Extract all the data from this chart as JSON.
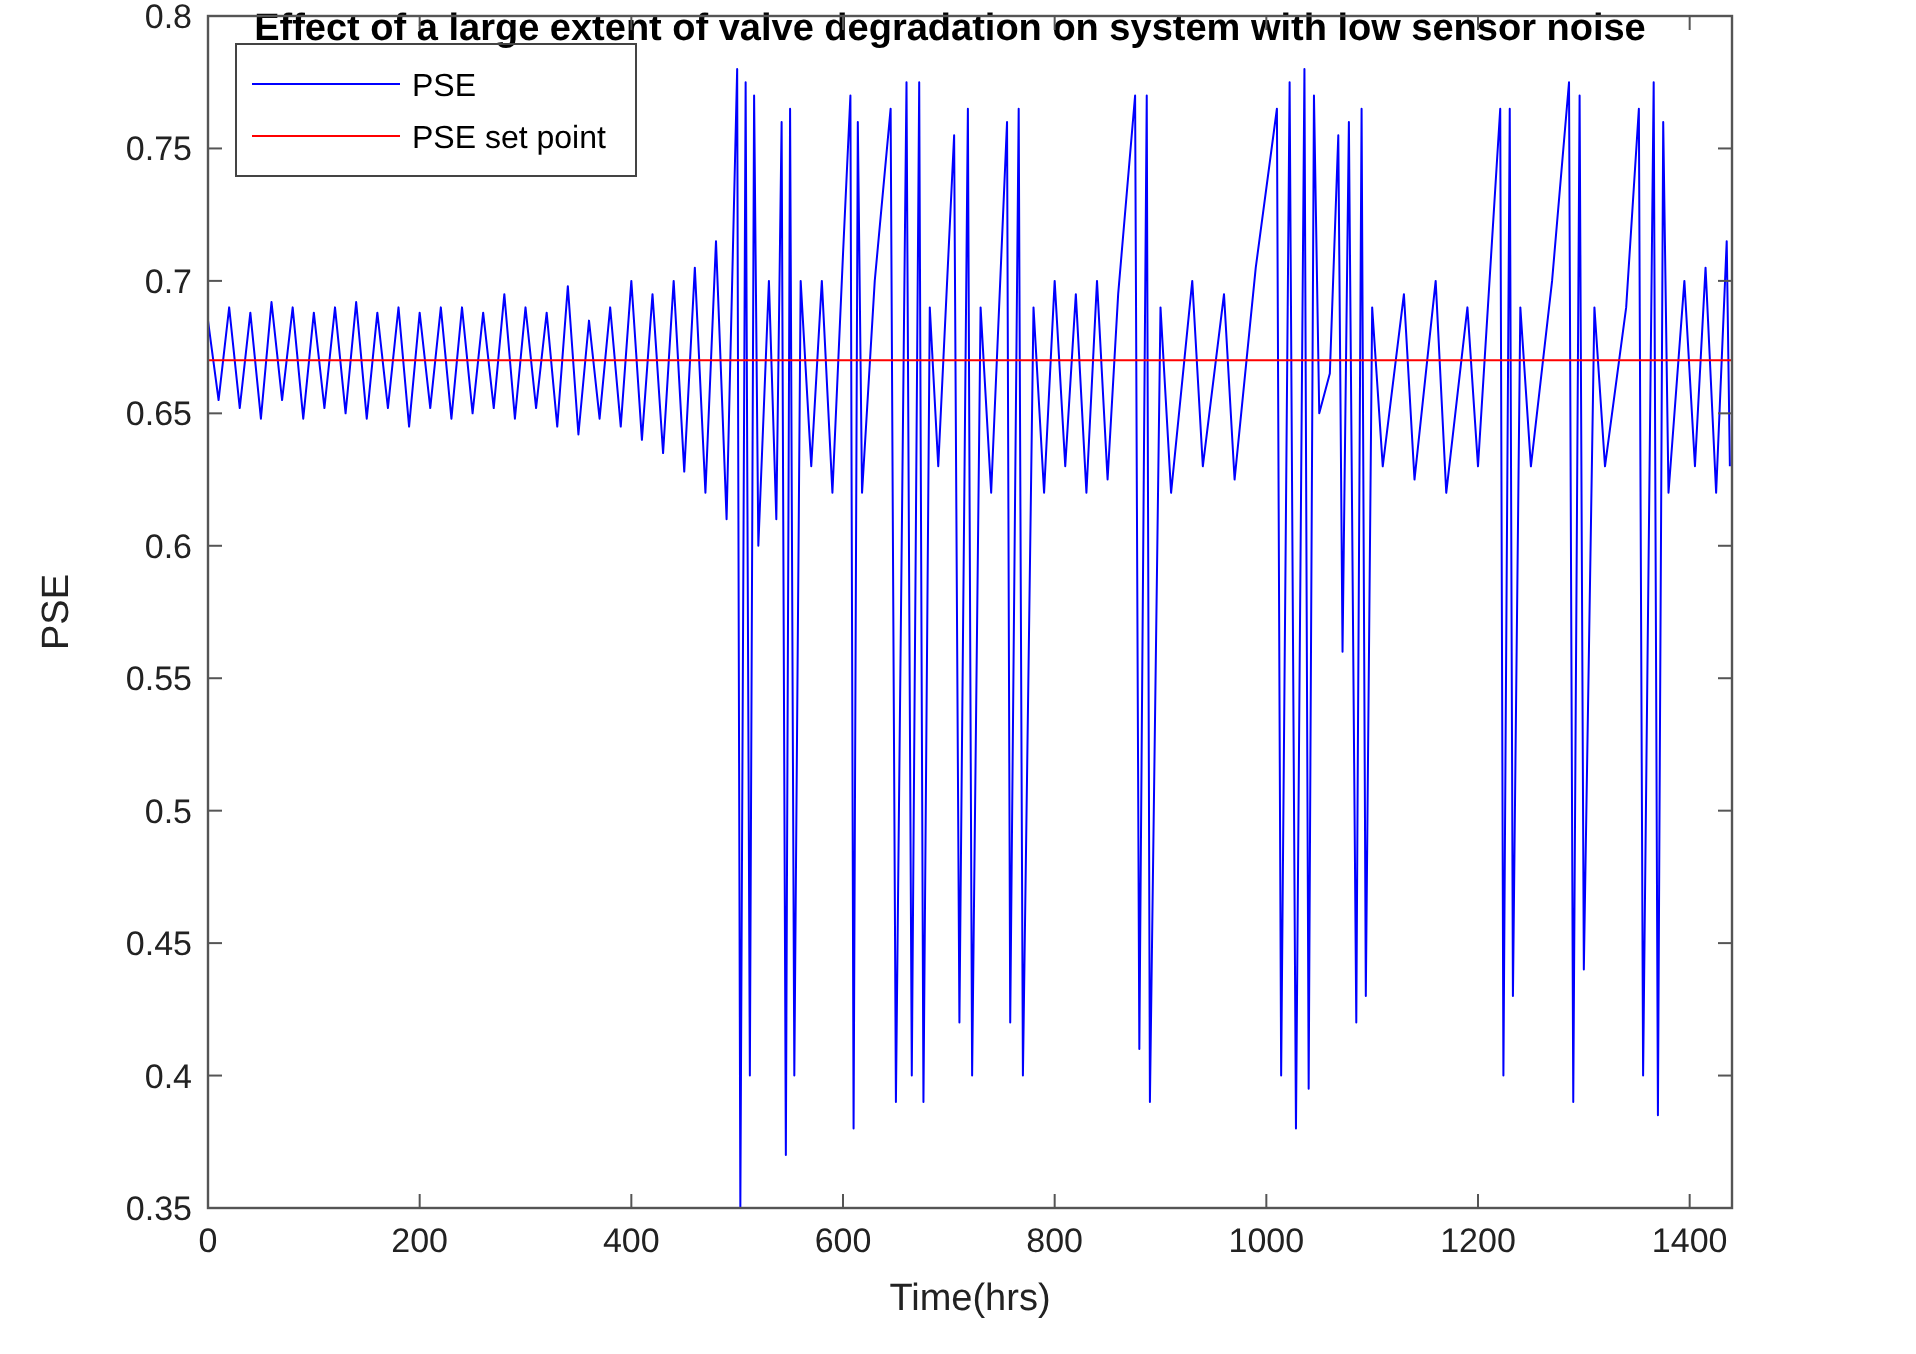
{
  "chart_data": {
    "type": "line",
    "title": "Effect of a large extent of valve degradation on system with low sensor noise",
    "xlabel": "Time(hrs)",
    "ylabel": "PSE",
    "xlim": [
      0,
      1440
    ],
    "xticks": [
      0,
      200,
      400,
      600,
      800,
      1000,
      1200,
      1400
    ],
    "ylim": [
      0.35,
      0.8
    ],
    "yticks": [
      0.35,
      0.4,
      0.45,
      0.5,
      0.55,
      0.6,
      0.65,
      0.7,
      0.75,
      0.8
    ],
    "grid": false,
    "legend": "top left",
    "line_style": "solid",
    "series": [
      {
        "name": "PSE",
        "color": "#0000ff",
        "x": [
          0,
          10,
          20,
          30,
          40,
          50,
          60,
          70,
          80,
          90,
          100,
          110,
          120,
          130,
          140,
          150,
          160,
          170,
          180,
          190,
          200,
          210,
          220,
          230,
          240,
          250,
          260,
          270,
          280,
          290,
          300,
          310,
          320,
          330,
          340,
          350,
          360,
          370,
          380,
          390,
          400,
          410,
          420,
          430,
          440,
          450,
          460,
          470,
          480,
          490,
          500,
          503,
          508,
          512,
          516,
          520,
          530,
          537,
          542,
          546,
          550,
          554,
          560,
          570,
          580,
          590,
          600,
          607,
          610,
          614,
          618,
          630,
          645,
          650,
          660,
          665,
          672,
          676,
          682,
          690,
          705,
          710,
          718,
          722,
          730,
          740,
          755,
          758,
          766,
          770,
          780,
          790,
          800,
          810,
          820,
          830,
          840,
          850,
          860,
          876,
          880,
          887,
          890,
          900,
          910,
          930,
          940,
          960,
          970,
          990,
          1010,
          1014,
          1022,
          1028,
          1036,
          1040,
          1045,
          1050,
          1060,
          1068,
          1072,
          1078,
          1085,
          1090,
          1094,
          1100,
          1110,
          1130,
          1140,
          1160,
          1170,
          1190,
          1200,
          1221,
          1224,
          1230,
          1233,
          1240,
          1250,
          1270,
          1286,
          1290,
          1296,
          1300,
          1310,
          1320,
          1340,
          1352,
          1356,
          1366,
          1370,
          1375,
          1380,
          1395,
          1405,
          1415,
          1425,
          1435,
          1438
        ],
        "values": [
          0.685,
          0.655,
          0.69,
          0.652,
          0.688,
          0.648,
          0.692,
          0.655,
          0.69,
          0.648,
          0.688,
          0.652,
          0.69,
          0.65,
          0.692,
          0.648,
          0.688,
          0.652,
          0.69,
          0.645,
          0.688,
          0.652,
          0.69,
          0.648,
          0.69,
          0.65,
          0.688,
          0.652,
          0.695,
          0.648,
          0.69,
          0.652,
          0.688,
          0.645,
          0.698,
          0.642,
          0.685,
          0.648,
          0.69,
          0.645,
          0.7,
          0.64,
          0.695,
          0.635,
          0.7,
          0.628,
          0.705,
          0.62,
          0.715,
          0.61,
          0.78,
          0.35,
          0.775,
          0.4,
          0.77,
          0.6,
          0.7,
          0.61,
          0.76,
          0.37,
          0.765,
          0.4,
          0.7,
          0.63,
          0.7,
          0.62,
          0.71,
          0.77,
          0.38,
          0.76,
          0.62,
          0.7,
          0.765,
          0.39,
          0.775,
          0.4,
          0.775,
          0.39,
          0.69,
          0.63,
          0.755,
          0.42,
          0.765,
          0.4,
          0.69,
          0.62,
          0.76,
          0.42,
          0.765,
          0.4,
          0.69,
          0.62,
          0.7,
          0.63,
          0.695,
          0.62,
          0.7,
          0.625,
          0.695,
          0.77,
          0.41,
          0.77,
          0.39,
          0.69,
          0.62,
          0.7,
          0.63,
          0.695,
          0.625,
          0.705,
          0.765,
          0.4,
          0.775,
          0.38,
          0.78,
          0.395,
          0.77,
          0.65,
          0.665,
          0.755,
          0.56,
          0.76,
          0.42,
          0.765,
          0.43,
          0.69,
          0.63,
          0.695,
          0.625,
          0.7,
          0.62,
          0.69,
          0.63,
          0.765,
          0.4,
          0.765,
          0.43,
          0.69,
          0.63,
          0.7,
          0.775,
          0.39,
          0.77,
          0.44,
          0.69,
          0.63,
          0.69,
          0.765,
          0.4,
          0.775,
          0.385,
          0.76,
          0.62,
          0.7,
          0.63,
          0.705,
          0.62,
          0.715,
          0.63
        ]
      },
      {
        "name": "PSE set point",
        "color": "#ff0000",
        "x": [
          0,
          1440
        ],
        "values": [
          0.67,
          0.67
        ]
      }
    ]
  }
}
